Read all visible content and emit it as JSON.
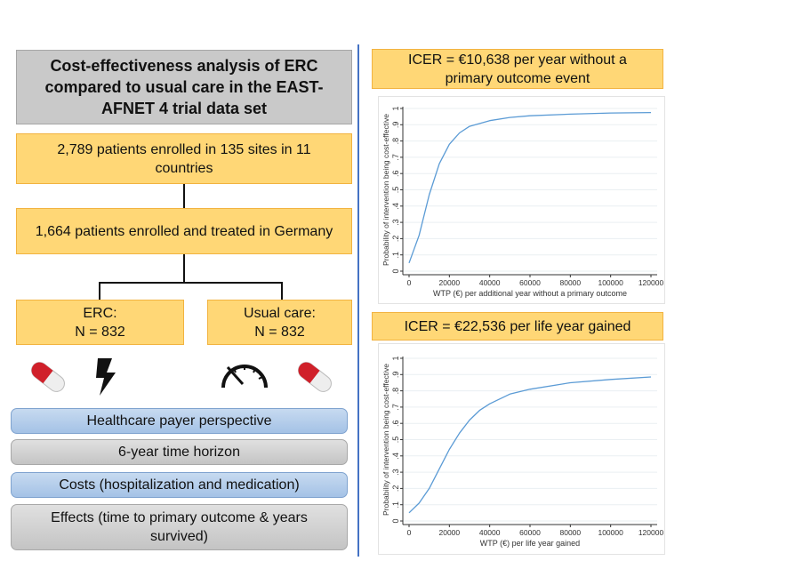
{
  "left": {
    "title": "Cost-effectiveness analysis of ERC compared to usual care in the EAST-AFNET 4 trial data set",
    "enrolled": "2,789 patients enrolled in 135 sites in 11 countries",
    "germany": "1,664 patients enrolled and treated in Germany",
    "erc": {
      "label": "ERC:",
      "n": "N = 832"
    },
    "usual": {
      "label": "Usual care:",
      "n": "N = 832"
    },
    "icons": [
      "pill-icon",
      "lightning-icon",
      "speedometer-icon",
      "pill-icon"
    ],
    "items": [
      "Healthcare payer perspective",
      "6-year time horizon",
      "Costs (hospitalization and medication)",
      "Effects (time to primary outcome & years survived)"
    ]
  },
  "right": {
    "icer1": "ICER = €10,638 per year without a primary outcome event",
    "icer2": "ICER = €22,536 per life year gained"
  },
  "colors": {
    "orange": "#ffd776",
    "blue": "#a4c2e6",
    "gray": "#c9c9c9",
    "divider": "#4472c4",
    "curve": "#5b9bd5"
  },
  "chart_data": [
    {
      "type": "line",
      "title": "",
      "xlabel": "WTP (€) per additional year without a primary outcome",
      "ylabel": "Probability of intervention being cost-effective",
      "xlim": [
        0,
        120000
      ],
      "ylim": [
        0,
        1
      ],
      "xticks": [
        "0",
        "20000",
        "40000",
        "60000",
        "80000",
        "100000",
        "120000"
      ],
      "yticks": [
        "0",
        ".1",
        ".2",
        ".3",
        ".4",
        ".5",
        ".6",
        ".7",
        ".8",
        ".9",
        "1"
      ],
      "grid": true,
      "x": [
        0,
        5000,
        10000,
        15000,
        20000,
        25000,
        30000,
        40000,
        50000,
        60000,
        80000,
        100000,
        120000
      ],
      "y": [
        0.05,
        0.22,
        0.47,
        0.66,
        0.78,
        0.85,
        0.89,
        0.925,
        0.945,
        0.955,
        0.965,
        0.972,
        0.975
      ]
    },
    {
      "type": "line",
      "title": "",
      "xlabel": "WTP (€) per life year gained",
      "ylabel": "Probability of intervention being cost-effective",
      "xlim": [
        0,
        120000
      ],
      "ylim": [
        0,
        1
      ],
      "xticks": [
        "0",
        "20000",
        "40000",
        "60000",
        "80000",
        "100000",
        "120000"
      ],
      "yticks": [
        "0",
        ".1",
        ".2",
        ".3",
        ".4",
        ".5",
        ".6",
        ".7",
        ".8",
        ".9",
        "1"
      ],
      "grid": true,
      "x": [
        0,
        5000,
        10000,
        15000,
        20000,
        25000,
        30000,
        35000,
        40000,
        50000,
        60000,
        80000,
        100000,
        120000
      ],
      "y": [
        0.05,
        0.11,
        0.2,
        0.32,
        0.44,
        0.54,
        0.62,
        0.68,
        0.72,
        0.78,
        0.81,
        0.85,
        0.87,
        0.885
      ]
    }
  ]
}
